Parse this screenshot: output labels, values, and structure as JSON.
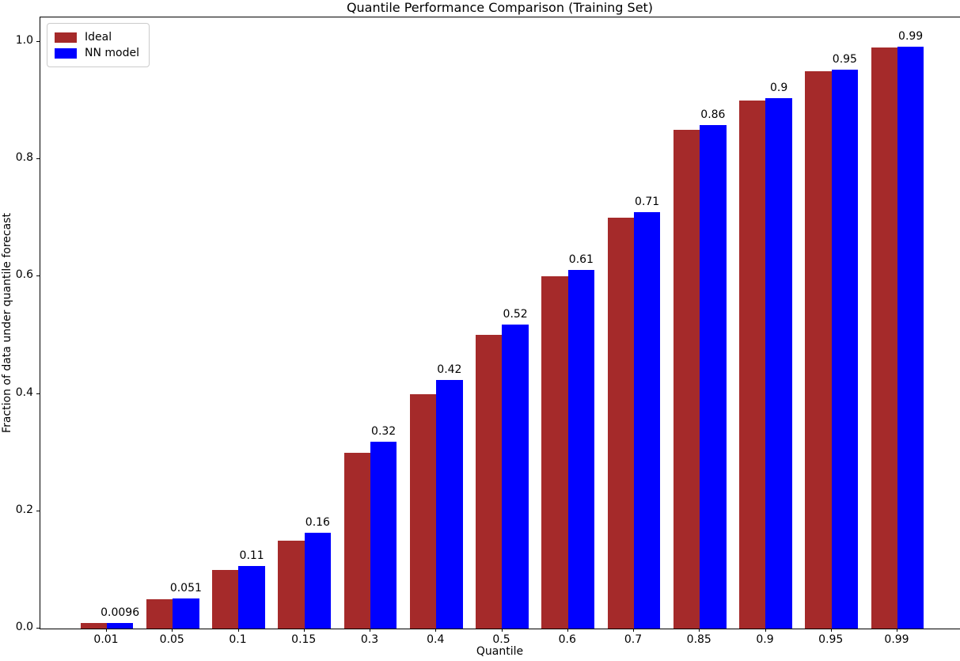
{
  "chart_data": {
    "type": "bar",
    "title": "Quantile Performance Comparison (Training Set)",
    "xlabel": "Quantile",
    "ylabel": "Fraction of data under quantile forecast",
    "categories": [
      "0.01",
      "0.05",
      "0.1",
      "0.15",
      "0.3",
      "0.4",
      "0.5",
      "0.6",
      "0.7",
      "0.85",
      "0.9",
      "0.95",
      "0.99"
    ],
    "series": [
      {
        "name": "Ideal",
        "color": "#A52A2A",
        "values": [
          0.01,
          0.05,
          0.1,
          0.15,
          0.3,
          0.4,
          0.5,
          0.6,
          0.7,
          0.85,
          0.9,
          0.95,
          0.99
        ]
      },
      {
        "name": "NN model",
        "color": "#0000FF",
        "values": [
          0.0096,
          0.051,
          0.107,
          0.163,
          0.318,
          0.424,
          0.518,
          0.611,
          0.71,
          0.858,
          0.904,
          0.952,
          0.991
        ],
        "bar_labels": [
          "0.0096",
          "0.051",
          "0.11",
          "0.16",
          "0.32",
          "0.42",
          "0.52",
          "0.61",
          "0.71",
          "0.86",
          "0.9",
          "0.95",
          "0.99"
        ]
      }
    ],
    "yticks": [
      "0.0",
      "0.2",
      "0.4",
      "0.6",
      "0.8",
      "1.0"
    ],
    "ylim": [
      0.0,
      1.04
    ],
    "grid": false,
    "legend_position": "upper left"
  }
}
